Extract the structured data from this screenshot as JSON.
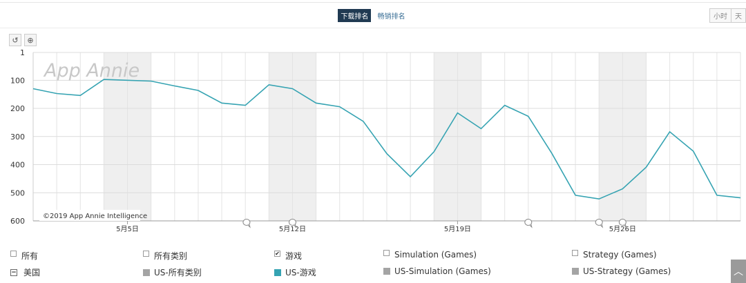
{
  "header": {
    "tabs": [
      "下载排名",
      "畅销排名"
    ],
    "active_tab": 0,
    "time_toggle": [
      "小时",
      "天"
    ]
  },
  "toolbar": {
    "reset_icon": "reset-zoom-icon",
    "zoom_icon": "zoom-in-icon"
  },
  "chart_data": {
    "type": "line",
    "y_inverted": true,
    "ylim": [
      1,
      600
    ],
    "y_ticks": [
      1,
      100,
      200,
      300,
      400,
      500,
      600
    ],
    "x_tick_labels": [
      "5月5日",
      "5月12日",
      "5月19日",
      "5月26日"
    ],
    "x_tick_days": [
      5,
      12,
      19,
      26
    ],
    "x_day_range": [
      1,
      31
    ],
    "weekend_bands": [
      [
        4,
        6
      ],
      [
        11,
        13
      ],
      [
        18,
        20
      ],
      [
        25,
        27
      ]
    ],
    "watermark": "App Annie",
    "credit": "©2019 App Annie Intelligence",
    "annotation_days": [
      10.05,
      12,
      22,
      25,
      26
    ],
    "series": [
      {
        "name": "US-游戏",
        "color": "#35a3b2",
        "x": [
          1,
          2,
          3,
          4,
          5,
          6,
          7,
          8,
          9,
          10,
          11,
          12,
          13,
          14,
          15,
          16,
          17,
          18,
          19,
          20,
          21,
          22,
          23,
          24,
          25,
          26,
          27,
          28,
          29,
          30,
          31
        ],
        "values": [
          130,
          147,
          154,
          97,
          100,
          103,
          120,
          136,
          181,
          189,
          116,
          130,
          181,
          194,
          246,
          361,
          443,
          354,
          216,
          272,
          189,
          228,
          360,
          509,
          522,
          486,
          409,
          283,
          352,
          509,
          518
        ]
      }
    ]
  },
  "legend": {
    "row1": [
      {
        "label": "所有",
        "checked": false
      },
      {
        "label": "所有类别",
        "checked": false
      },
      {
        "label": "游戏",
        "checked": true
      },
      {
        "label": "Simulation (Games)",
        "checked": false
      },
      {
        "label": "Strategy (Games)",
        "checked": false
      }
    ],
    "row2": [
      {
        "label": "美国",
        "color": ""
      },
      {
        "label": "US-所有类别",
        "color": "#a4a4a4"
      },
      {
        "label": "US-游戏",
        "color": "#35a3b2"
      },
      {
        "label": "US-Simulation (Games)",
        "color": "#a4a4a4"
      },
      {
        "label": "US-Strategy (Games)",
        "color": "#a4a4a4"
      }
    ]
  }
}
